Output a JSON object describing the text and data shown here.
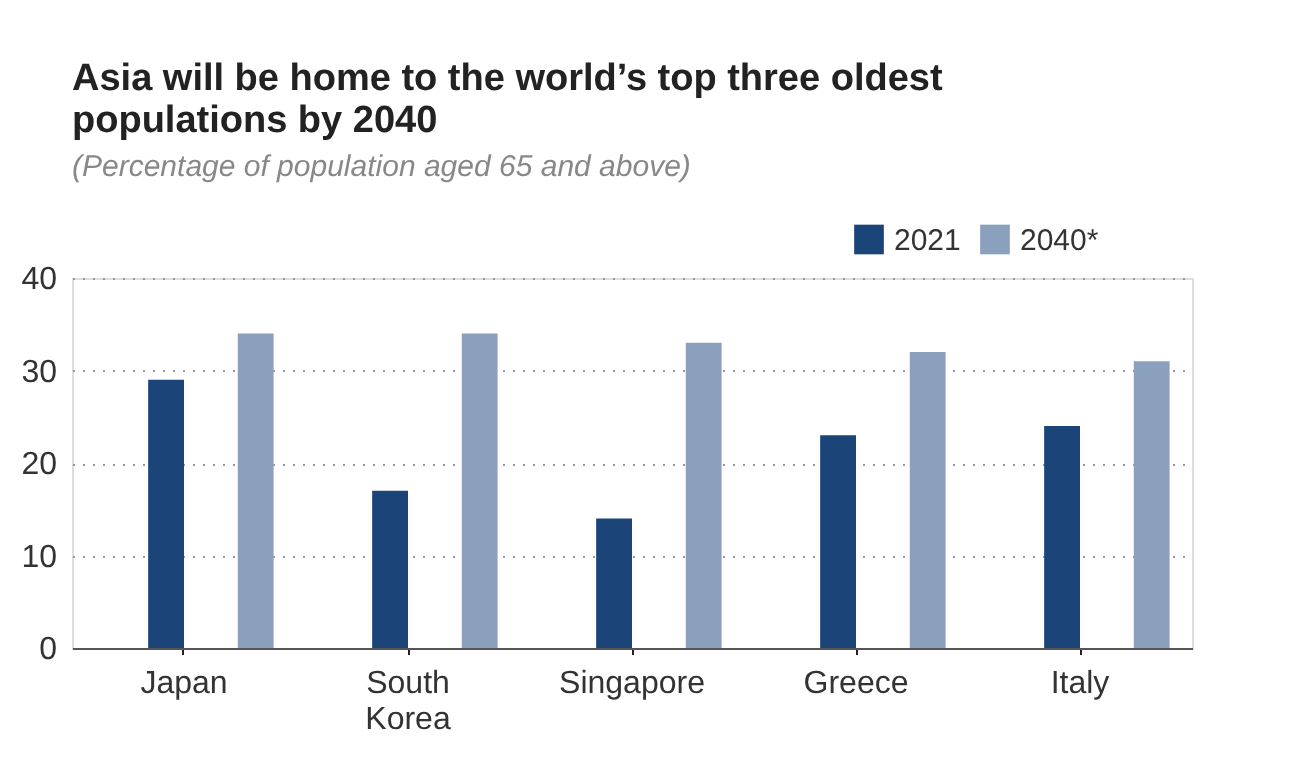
{
  "chart_data": {
    "type": "bar",
    "title": "Asia will be home to the world’s top three oldest populations by 2040",
    "subtitle": "(Percentage of population aged 65 and above)",
    "categories": [
      "Japan",
      "South Korea",
      "Singapore",
      "Greece",
      "Italy"
    ],
    "series": [
      {
        "name": "2021",
        "color": "#1b4479",
        "values": [
          29,
          17,
          14,
          23,
          24
        ]
      },
      {
        "name": "2040*",
        "color": "#8aa0bc",
        "values": [
          34,
          34,
          33,
          32,
          31
        ]
      }
    ],
    "ylim": [
      0,
      40
    ],
    "yticks": [
      0,
      10,
      20,
      30,
      40
    ],
    "grid": "y",
    "legend": "top right"
  }
}
